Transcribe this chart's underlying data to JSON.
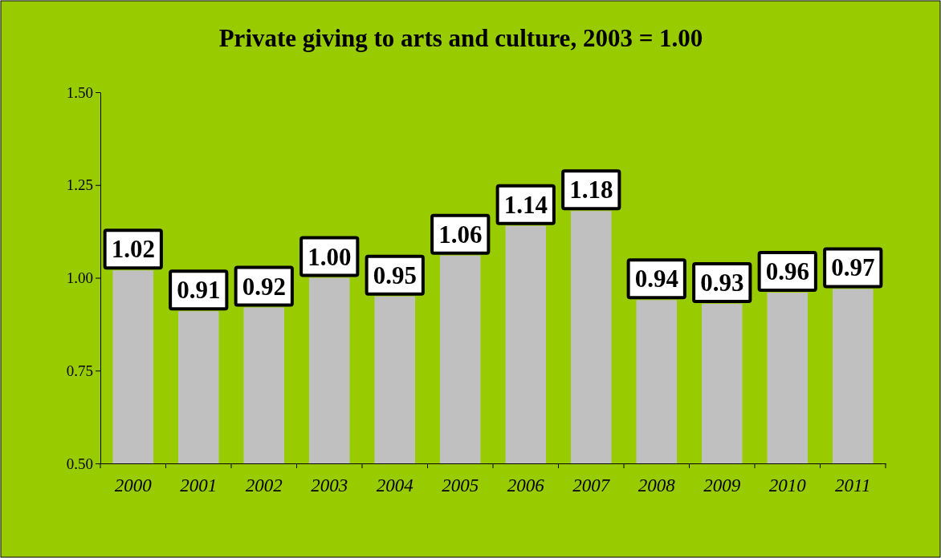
{
  "chart_data": {
    "type": "bar",
    "title": "Private giving to arts and culture, 2003 = 1.00",
    "categories": [
      "2000",
      "2001",
      "2002",
      "2003",
      "2004",
      "2005",
      "2006",
      "2007",
      "2008",
      "2009",
      "2010",
      "2011"
    ],
    "values": [
      1.02,
      0.91,
      0.92,
      1.0,
      0.95,
      1.06,
      1.14,
      1.18,
      0.94,
      0.93,
      0.96,
      0.97
    ],
    "color": "#c0c0c0",
    "ylim": [
      0.5,
      1.5
    ],
    "yticks": [
      {
        "value": 0.5,
        "label": "0.50"
      },
      {
        "value": 0.75,
        "label": "0.75"
      },
      {
        "value": 1,
        "label": "1.00"
      },
      {
        "value": 1.25,
        "label": "1.25"
      },
      {
        "value": 1.5,
        "label": "1.50"
      }
    ],
    "value_labels": [
      "1.02",
      "0.91",
      "0.92",
      "1.00",
      "0.95",
      "1.06",
      "1.14",
      "1.18",
      "0.94",
      "0.93",
      "0.96",
      "0.97"
    ],
    "grid": false
  }
}
